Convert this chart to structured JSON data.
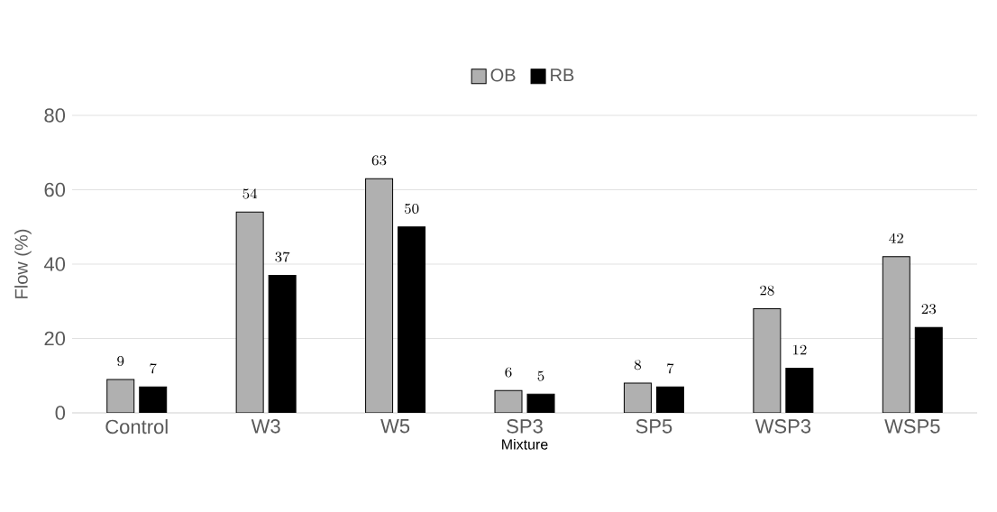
{
  "chart_data": {
    "type": "bar",
    "xlabel": "Mixture",
    "ylabel": "Flow (%)",
    "categories": [
      "Control",
      "W3",
      "W5",
      "SP3",
      "SP5",
      "WSP3",
      "WSP5"
    ],
    "series": [
      {
        "name": "OB",
        "color": "#b0b0b0",
        "values": [
          9,
          54,
          63,
          6,
          8,
          28,
          42
        ]
      },
      {
        "name": "RB",
        "color": "#000000",
        "values": [
          7,
          37,
          50,
          5,
          7,
          12,
          23
        ]
      }
    ],
    "ylim": [
      0,
      80
    ],
    "yticks": [
      0,
      20,
      40,
      60,
      80
    ],
    "grid": "y",
    "legend": "top",
    "data_labels": true
  }
}
